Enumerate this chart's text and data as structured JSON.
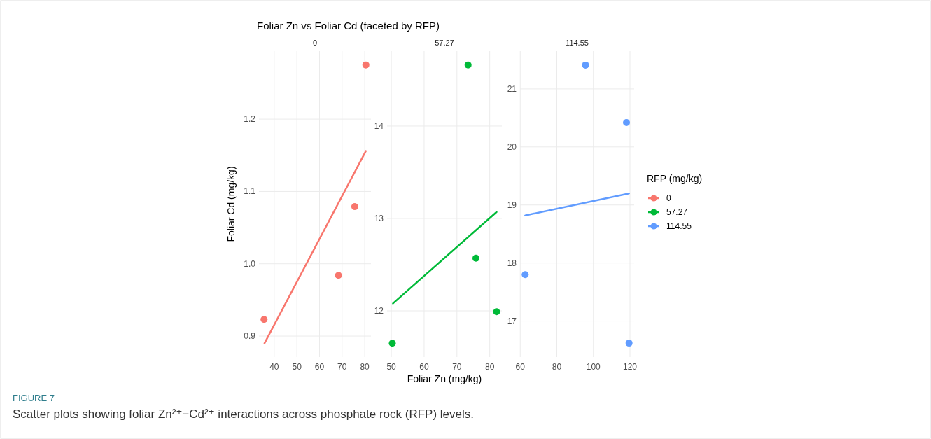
{
  "chart_data": [
    {
      "type": "scatter",
      "title": "Foliar Zn vs Foliar Cd (faceted by RFP)",
      "subtitle": "0",
      "ylabel": "Foliar Cd (mg/kg)",
      "xlim": [
        33.25,
        82.75
      ],
      "xticks": [
        40,
        50,
        60,
        70,
        80
      ],
      "ylim": [
        0.871,
        1.294
      ],
      "yticks": [
        0.9,
        {
          "value": 1,
          "label": "1.0"
        },
        1.1,
        1.2
      ],
      "grid": true,
      "annotations": [
        "FIGURE 7",
        "Scatter plots showing foliar Zn²⁺−Cd²⁺ interactions across phosphate rock (RFP) levels."
      ],
      "series": [
        {
          "name": "0",
          "color": "#f8766d",
          "marker": "circle",
          "x": [
            35.5,
            68.4,
            75.6,
            80.5
          ],
          "values": [
            0.923,
            0.984,
            1.079,
            1.275
          ]
        },
        {
          "type": "line",
          "color": "#f8766d",
          "x": [
            35.7,
            80.5
          ],
          "values": [
            0.89,
            1.156
          ]
        }
      ]
    },
    {
      "type": "scatter",
      "subtitle": "57.27",
      "xlabel": "Foliar Zn (mg/kg)",
      "xlim": [
        48.7,
        83.7
      ],
      "xticks": [
        50,
        60,
        70,
        80
      ],
      "ylim": [
        11.5,
        14.81
      ],
      "yticks": [
        12,
        13,
        14
      ],
      "grid": true,
      "series": [
        {
          "name": "57.27",
          "color": "#00ba38",
          "marker": "circle",
          "x": [
            50.3,
            73.4,
            75.8,
            82.1
          ],
          "values": [
            11.65,
            14.66,
            12.57,
            11.99
          ]
        },
        {
          "type": "line",
          "color": "#00ba38",
          "x": [
            50.5,
            82.1
          ],
          "values": [
            12.08,
            13.07
          ]
        }
      ]
    },
    {
      "type": "scatter",
      "subtitle": "114.55",
      "xlim": [
        59.9,
        122.3
      ],
      "xticks": [
        60,
        80,
        100,
        120
      ],
      "ylim": [
        16.38,
        21.65
      ],
      "yticks": [
        17,
        18,
        19,
        20,
        21
      ],
      "grid": true,
      "legend": "right",
      "legend_title": "RFP (mg/kg)",
      "series": [
        {
          "name": "114.55",
          "color": "#619cff",
          "marker": "circle",
          "x": [
            62.7,
            95.7,
            118.1,
            119.5
          ],
          "values": [
            17.8,
            21.41,
            20.42,
            16.62
          ]
        },
        {
          "type": "line",
          "color": "#619cff",
          "x": [
            62.7,
            119.5
          ],
          "values": [
            18.82,
            19.2
          ]
        }
      ]
    }
  ]
}
